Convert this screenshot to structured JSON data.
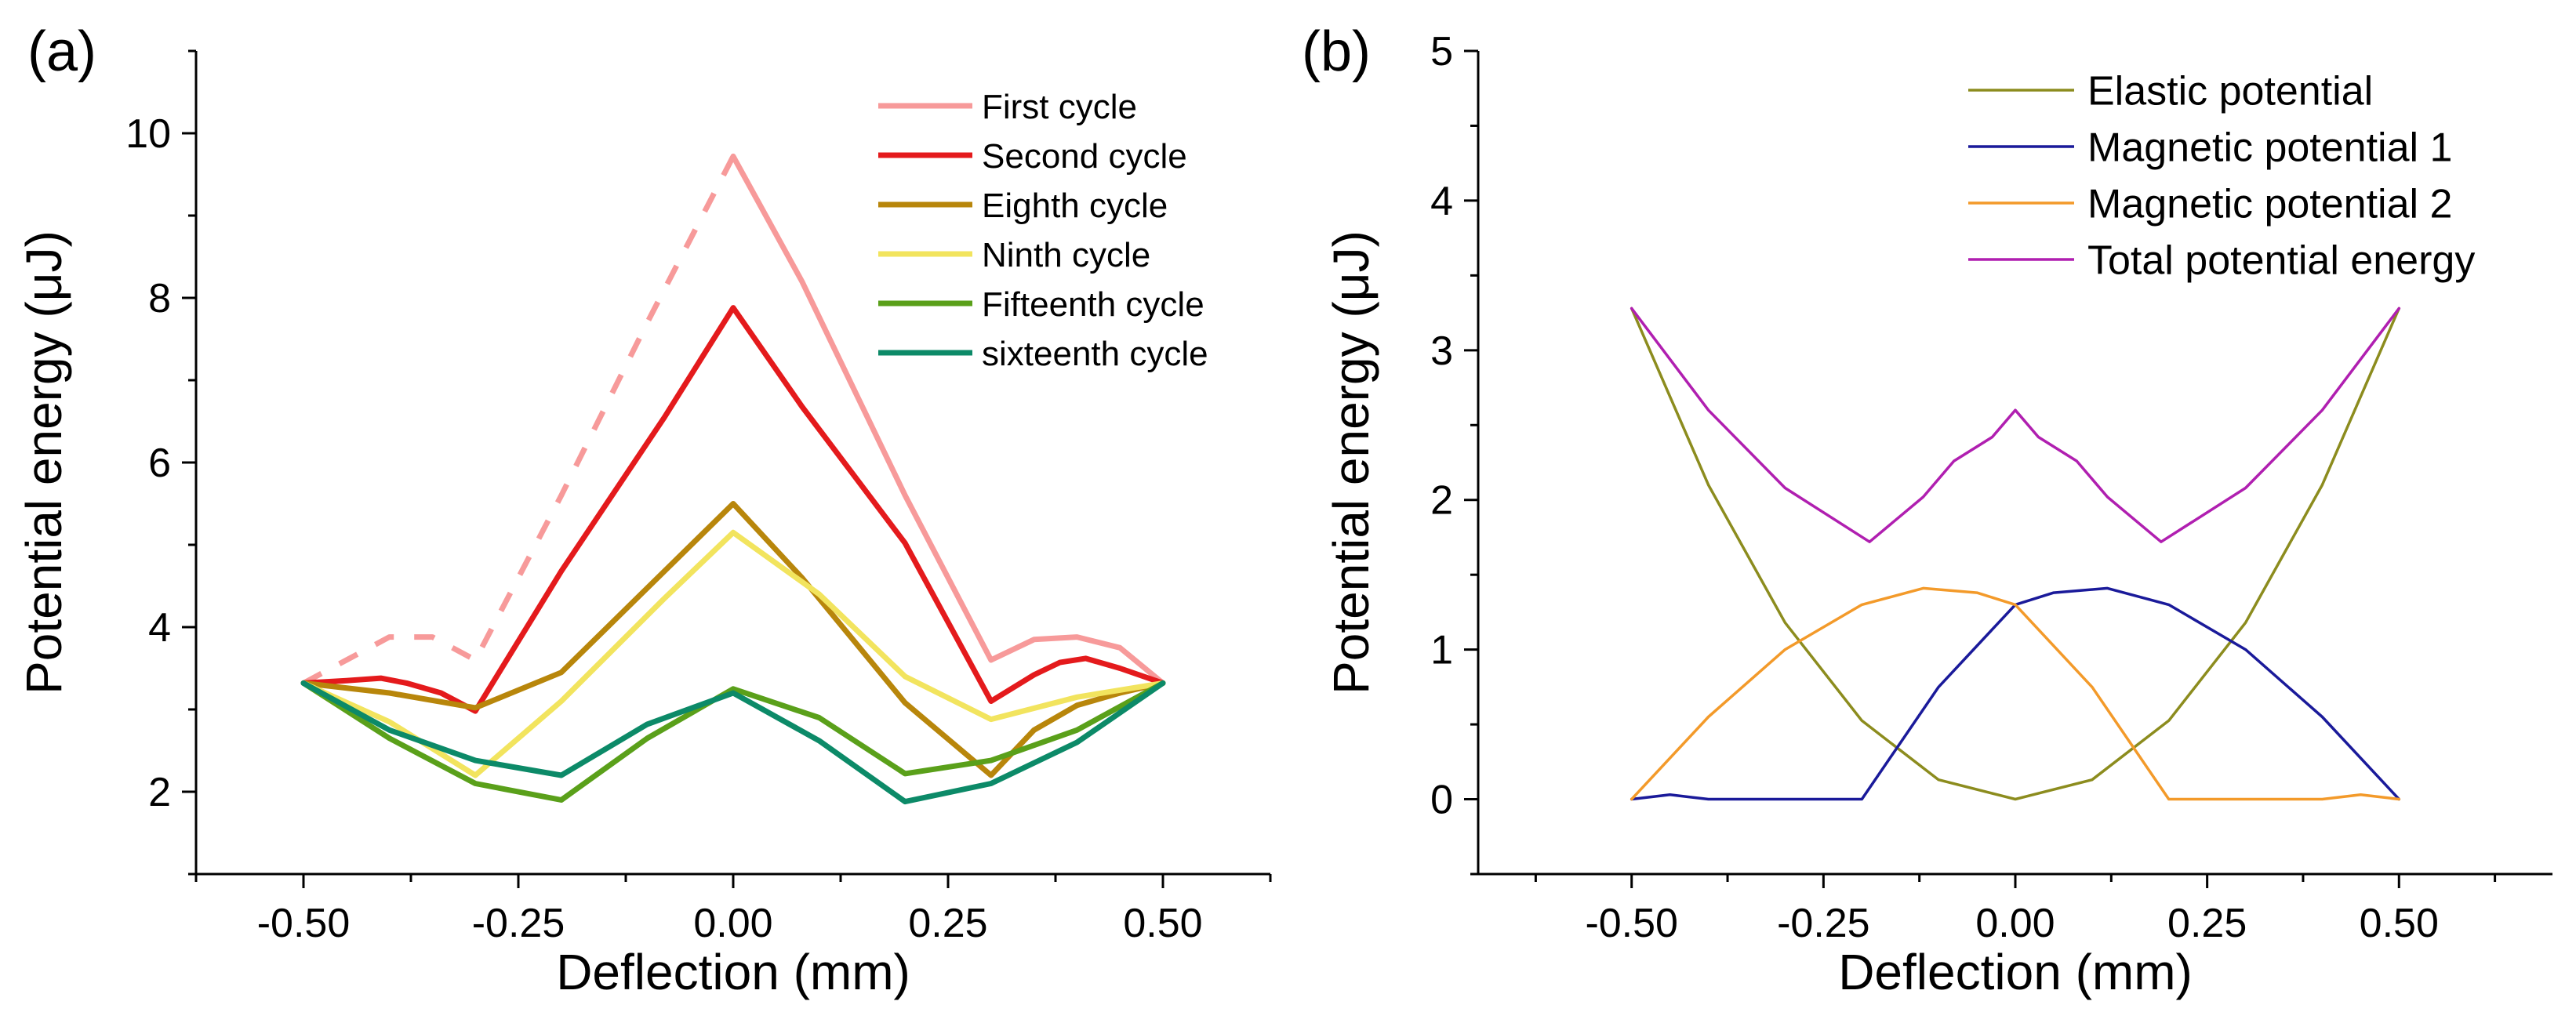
{
  "chart_data": [
    {
      "panel_label": "(a)",
      "type": "line",
      "title": "",
      "xlabel": "Deflection (mm)",
      "ylabel": "Potential energy (μJ)",
      "xlim": [
        -0.625,
        0.625
      ],
      "ylim": [
        1,
        11
      ],
      "xticks": [
        -0.5,
        -0.25,
        0.0,
        0.25,
        0.5
      ],
      "xtick_labels": [
        "-0.50",
        "-0.25",
        "0.00",
        "0.25",
        "0.50"
      ],
      "yticks": [
        2,
        4,
        6,
        8,
        10
      ],
      "ytick_labels": [
        "2",
        "4",
        "6",
        "8",
        "10"
      ],
      "legend_position": "top-right",
      "series": [
        {
          "name": "First cycle",
          "color": "#f79a9a",
          "dashed_segment": {
            "x": [
              -0.5,
              -0.45,
              -0.4,
              -0.35,
              -0.3,
              -0.2,
              -0.1,
              0.0
            ],
            "y": [
              3.32,
              3.6,
              3.88,
              3.88,
              3.6,
              5.6,
              7.7,
              9.72
            ]
          },
          "x": [
            0.0,
            0.08,
            0.2,
            0.3,
            0.35,
            0.4,
            0.45,
            0.5
          ],
          "y": [
            9.72,
            8.2,
            5.6,
            3.6,
            3.85,
            3.88,
            3.75,
            3.32
          ]
        },
        {
          "name": "Second cycle",
          "color": "#e41a1c",
          "x": [
            -0.5,
            -0.45,
            -0.41,
            -0.38,
            -0.34,
            -0.3,
            -0.2,
            -0.08,
            0.0,
            0.08,
            0.2,
            0.3,
            0.35,
            0.38,
            0.41,
            0.45,
            0.5
          ],
          "y": [
            3.32,
            3.35,
            3.38,
            3.32,
            3.2,
            2.98,
            4.68,
            6.55,
            7.88,
            6.68,
            5.02,
            3.1,
            3.42,
            3.57,
            3.62,
            3.5,
            3.32
          ]
        },
        {
          "name": "Eighth cycle",
          "color": "#b8860b",
          "x": [
            -0.5,
            -0.4,
            -0.3,
            -0.2,
            -0.08,
            0.0,
            0.08,
            0.2,
            0.3,
            0.35,
            0.4,
            0.45,
            0.5
          ],
          "y": [
            3.32,
            3.2,
            3.02,
            3.45,
            4.68,
            5.5,
            4.6,
            3.08,
            2.2,
            2.75,
            3.05,
            3.2,
            3.32
          ]
        },
        {
          "name": "Ninth cycle",
          "color": "#f2e45e",
          "x": [
            -0.5,
            -0.4,
            -0.3,
            -0.2,
            -0.08,
            0.0,
            0.1,
            0.2,
            0.3,
            0.4,
            0.5
          ],
          "y": [
            3.32,
            2.85,
            2.2,
            3.1,
            4.35,
            5.15,
            4.4,
            3.4,
            2.88,
            3.15,
            3.32
          ]
        },
        {
          "name": "Fifteenth cycle",
          "color": "#5aa01a",
          "x": [
            -0.5,
            -0.4,
            -0.3,
            -0.2,
            -0.1,
            0.0,
            0.1,
            0.2,
            0.3,
            0.4,
            0.5
          ],
          "y": [
            3.32,
            2.65,
            2.1,
            1.9,
            2.65,
            3.25,
            2.9,
            2.22,
            2.38,
            2.75,
            3.32
          ]
        },
        {
          "name": "sixteenth cycle",
          "color": "#0c8a68",
          "x": [
            -0.5,
            -0.4,
            -0.3,
            -0.2,
            -0.1,
            0.0,
            0.1,
            0.2,
            0.3,
            0.4,
            0.5
          ],
          "y": [
            3.32,
            2.75,
            2.38,
            2.2,
            2.82,
            3.2,
            2.62,
            1.88,
            2.1,
            2.6,
            3.32
          ]
        }
      ]
    },
    {
      "panel_label": "(b)",
      "type": "line",
      "title": "",
      "xlabel": "Deflection (mm)",
      "ylabel": "Potential energy (μJ)",
      "xlim": [
        -0.7,
        0.7
      ],
      "ylim": [
        -0.5,
        5
      ],
      "xticks": [
        -0.5,
        -0.25,
        0.0,
        0.25,
        0.5
      ],
      "xtick_labels": [
        "-0.50",
        "-0.25",
        "0.00",
        "0.25",
        "0.50"
      ],
      "yticks": [
        0,
        1,
        2,
        3,
        4,
        5
      ],
      "ytick_labels": [
        "0",
        "1",
        "2",
        "3",
        "4",
        "5"
      ],
      "legend_position": "top-right",
      "series": [
        {
          "name": "Elastic potential",
          "color": "#8c8c1e",
          "x": [
            -0.5,
            -0.4,
            -0.3,
            -0.2,
            -0.1,
            0.0,
            0.1,
            0.2,
            0.3,
            0.4,
            0.5
          ],
          "y": [
            3.28,
            2.1,
            1.18,
            0.525,
            0.13,
            0.0,
            0.13,
            0.525,
            1.18,
            2.1,
            3.28
          ]
        },
        {
          "name": "Magnetic potential 1",
          "color": "#1a1a9a",
          "x": [
            -0.5,
            -0.45,
            -0.4,
            -0.3,
            -0.2,
            -0.1,
            0.0,
            0.05,
            0.12,
            0.2,
            0.3,
            0.4,
            0.5
          ],
          "y": [
            0.0,
            0.03,
            0.0,
            0.0,
            0.0,
            0.75,
            1.3,
            1.38,
            1.41,
            1.3,
            1.0,
            0.55,
            0.0
          ]
        },
        {
          "name": "Magnetic potential 2",
          "color": "#f39a2a",
          "x": [
            -0.5,
            -0.4,
            -0.3,
            -0.2,
            -0.12,
            -0.05,
            0.0,
            0.1,
            0.2,
            0.3,
            0.4,
            0.45,
            0.5
          ],
          "y": [
            0.0,
            0.55,
            1.0,
            1.3,
            1.41,
            1.38,
            1.3,
            0.75,
            0.0,
            0.0,
            0.0,
            0.03,
            0.0
          ]
        },
        {
          "name": "Total potential energy",
          "color": "#b01fb0",
          "x": [
            -0.5,
            -0.4,
            -0.3,
            -0.19,
            -0.12,
            -0.08,
            -0.03,
            0.0,
            0.03,
            0.08,
            0.12,
            0.19,
            0.3,
            0.4,
            0.5
          ],
          "y": [
            3.28,
            2.6,
            2.08,
            1.72,
            2.02,
            2.26,
            2.42,
            2.6,
            2.42,
            2.26,
            2.02,
            1.72,
            2.08,
            2.6,
            3.28
          ]
        }
      ]
    }
  ]
}
